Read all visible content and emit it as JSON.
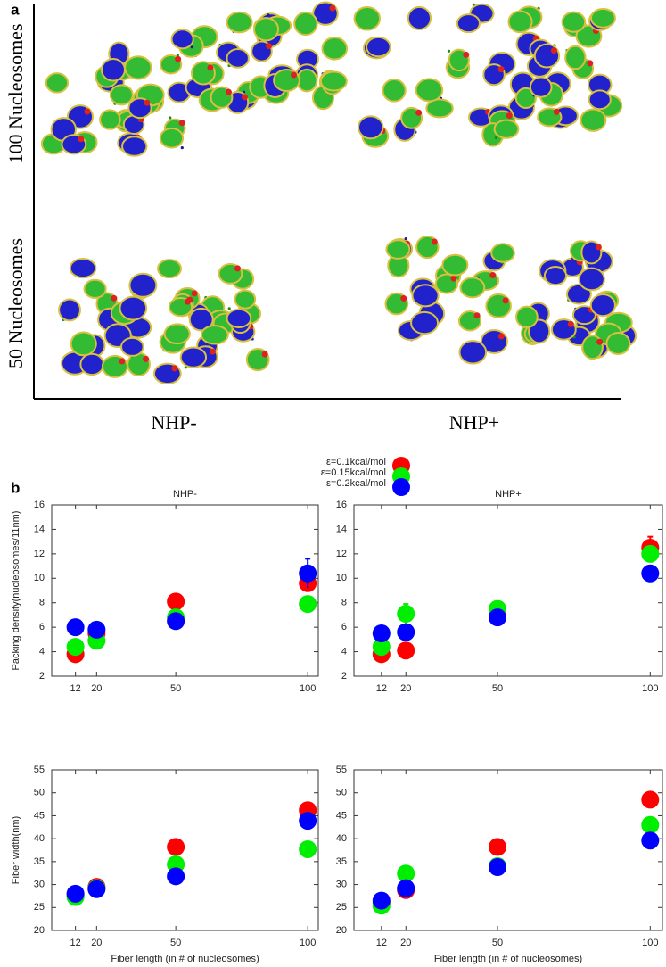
{
  "panel_a": {
    "label": "a",
    "row_labels": [
      "100 Nucleosomes",
      "50 Nucleosomes"
    ],
    "column_labels": [
      "NHP-",
      "NHP+"
    ]
  },
  "panel_b": {
    "label": "b"
  },
  "chart_data": [
    {
      "type": "scatter",
      "title": "NHP-",
      "ylabel": "Packing density(nucleosomes/11nm)",
      "x": [
        12,
        20,
        50,
        100
      ],
      "xlim": [
        3,
        104
      ],
      "xticks": [
        12,
        20,
        50,
        100
      ],
      "ylim": [
        2,
        16
      ],
      "yticks": [
        2,
        4,
        6,
        8,
        10,
        12,
        14,
        16
      ],
      "series": [
        {
          "name": "ε=0.1kcal/mol",
          "color": "#ff0000",
          "values": [
            3.8,
            5.5,
            8.1,
            9.6
          ],
          "errors": [
            null,
            null,
            null,
            null
          ]
        },
        {
          "name": "ε=0.15kcal/mol",
          "color": "#00ee00",
          "values": [
            4.4,
            4.9,
            6.8,
            7.9
          ],
          "errors": [
            null,
            null,
            null,
            null
          ]
        },
        {
          "name": "ε=0.2kcal/mol",
          "color": "#0000ff",
          "values": [
            6.0,
            5.8,
            6.5,
            10.4
          ],
          "errors": [
            null,
            null,
            null,
            1.2
          ]
        }
      ]
    },
    {
      "type": "scatter",
      "title": "NHP+",
      "x": [
        12,
        20,
        50,
        100
      ],
      "xlim": [
        3,
        104
      ],
      "xticks": [
        12,
        20,
        50,
        100
      ],
      "ylim": [
        2,
        16
      ],
      "yticks": [
        2,
        4,
        6,
        8,
        10,
        12,
        14,
        16
      ],
      "series": [
        {
          "color": "#ff0000",
          "values": [
            3.8,
            4.1,
            7.0,
            12.5
          ],
          "errors": [
            0.6,
            null,
            null,
            0.9
          ]
        },
        {
          "color": "#00ee00",
          "values": [
            4.4,
            7.1,
            7.5,
            12.0
          ],
          "errors": [
            null,
            0.8,
            null,
            null
          ]
        },
        {
          "color": "#0000ff",
          "values": [
            5.5,
            5.6,
            6.8,
            10.4
          ],
          "errors": [
            null,
            null,
            null,
            null
          ]
        }
      ]
    },
    {
      "type": "scatter",
      "ylabel": "Fiber width(nm)",
      "xlabel": "Fiber length (in # of nucleosomes)",
      "x": [
        12,
        20,
        50,
        100
      ],
      "xlim": [
        3,
        104
      ],
      "xticks": [
        12,
        20,
        50,
        100
      ],
      "ylim": [
        20,
        55
      ],
      "yticks": [
        20,
        25,
        30,
        35,
        40,
        45,
        50,
        55
      ],
      "series": [
        {
          "color": "#ff0000",
          "values": [
            27.8,
            29.5,
            38.2,
            46.2
          ],
          "errors": [
            null,
            null,
            null,
            null
          ]
        },
        {
          "color": "#00ee00",
          "values": [
            27.3,
            29.2,
            34.4,
            37.7
          ],
          "errors": [
            null,
            null,
            null,
            null
          ]
        },
        {
          "color": "#0000ff",
          "values": [
            28.0,
            29.0,
            31.8,
            43.9
          ],
          "errors": [
            null,
            null,
            null,
            null
          ]
        }
      ]
    },
    {
      "type": "scatter",
      "xlabel": "Fiber length (in # of nucleosomes)",
      "x": [
        12,
        20,
        50,
        100
      ],
      "xlim": [
        3,
        104
      ],
      "xticks": [
        12,
        20,
        50,
        100
      ],
      "ylim": [
        20,
        55
      ],
      "yticks": [
        20,
        25,
        30,
        35,
        40,
        45,
        50,
        55
      ],
      "series": [
        {
          "color": "#ff0000",
          "values": [
            26.0,
            28.8,
            38.2,
            48.5
          ],
          "errors": [
            null,
            null,
            null,
            null
          ]
        },
        {
          "color": "#00ee00",
          "values": [
            25.4,
            32.4,
            34.0,
            43.0
          ],
          "errors": [
            null,
            null,
            null,
            null
          ]
        },
        {
          "color": "#0000ff",
          "values": [
            26.5,
            29.2,
            33.8,
            39.6
          ],
          "errors": [
            null,
            null,
            null,
            null
          ]
        }
      ]
    }
  ]
}
